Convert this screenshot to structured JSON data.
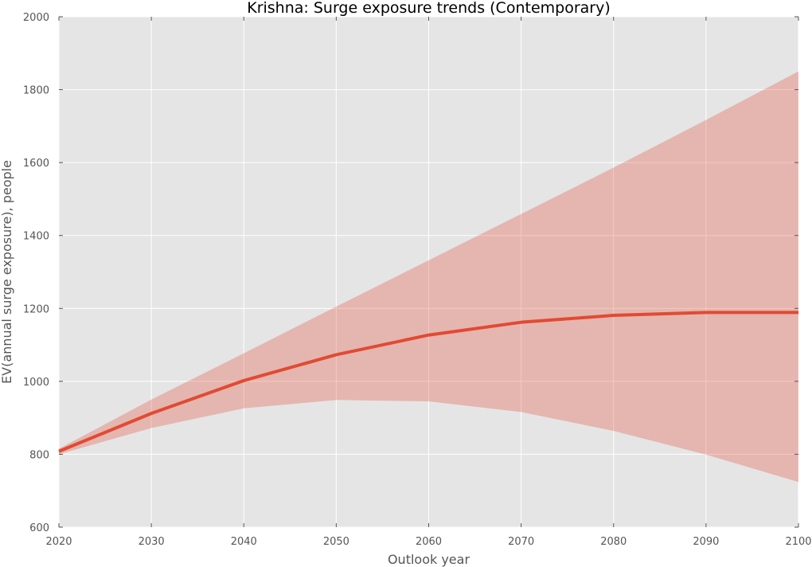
{
  "chart_data": {
    "type": "line",
    "title": "Krishna: Surge exposure trends (Contemporary)",
    "xlabel": "Outlook year",
    "ylabel": "EV(annual surge exposure), people",
    "x": [
      2020,
      2030,
      2040,
      2050,
      2060,
      2070,
      2080,
      2090,
      2100
    ],
    "xlim": [
      2020,
      2100
    ],
    "ylim": [
      600,
      2000
    ],
    "xticks": [
      2020,
      2030,
      2040,
      2050,
      2060,
      2070,
      2080,
      2090,
      2100
    ],
    "yticks": [
      600,
      800,
      1000,
      1200,
      1400,
      1600,
      1800,
      2000
    ],
    "grid": true,
    "series": [
      {
        "values": [
          808,
          912,
          1002,
          1073,
          1127,
          1162,
          1181,
          1189,
          1189
        ],
        "color": "#e24a33"
      }
    ],
    "band": {
      "lower": [
        800,
        872,
        926,
        949,
        945,
        916,
        864,
        799,
        724
      ],
      "upper": [
        815,
        950,
        1077,
        1205,
        1332,
        1459,
        1586,
        1717,
        1850
      ],
      "color": "#e24a33",
      "opacity": 0.3
    },
    "background_color": "#e5e5e5",
    "grid_color": "#ffffff"
  }
}
